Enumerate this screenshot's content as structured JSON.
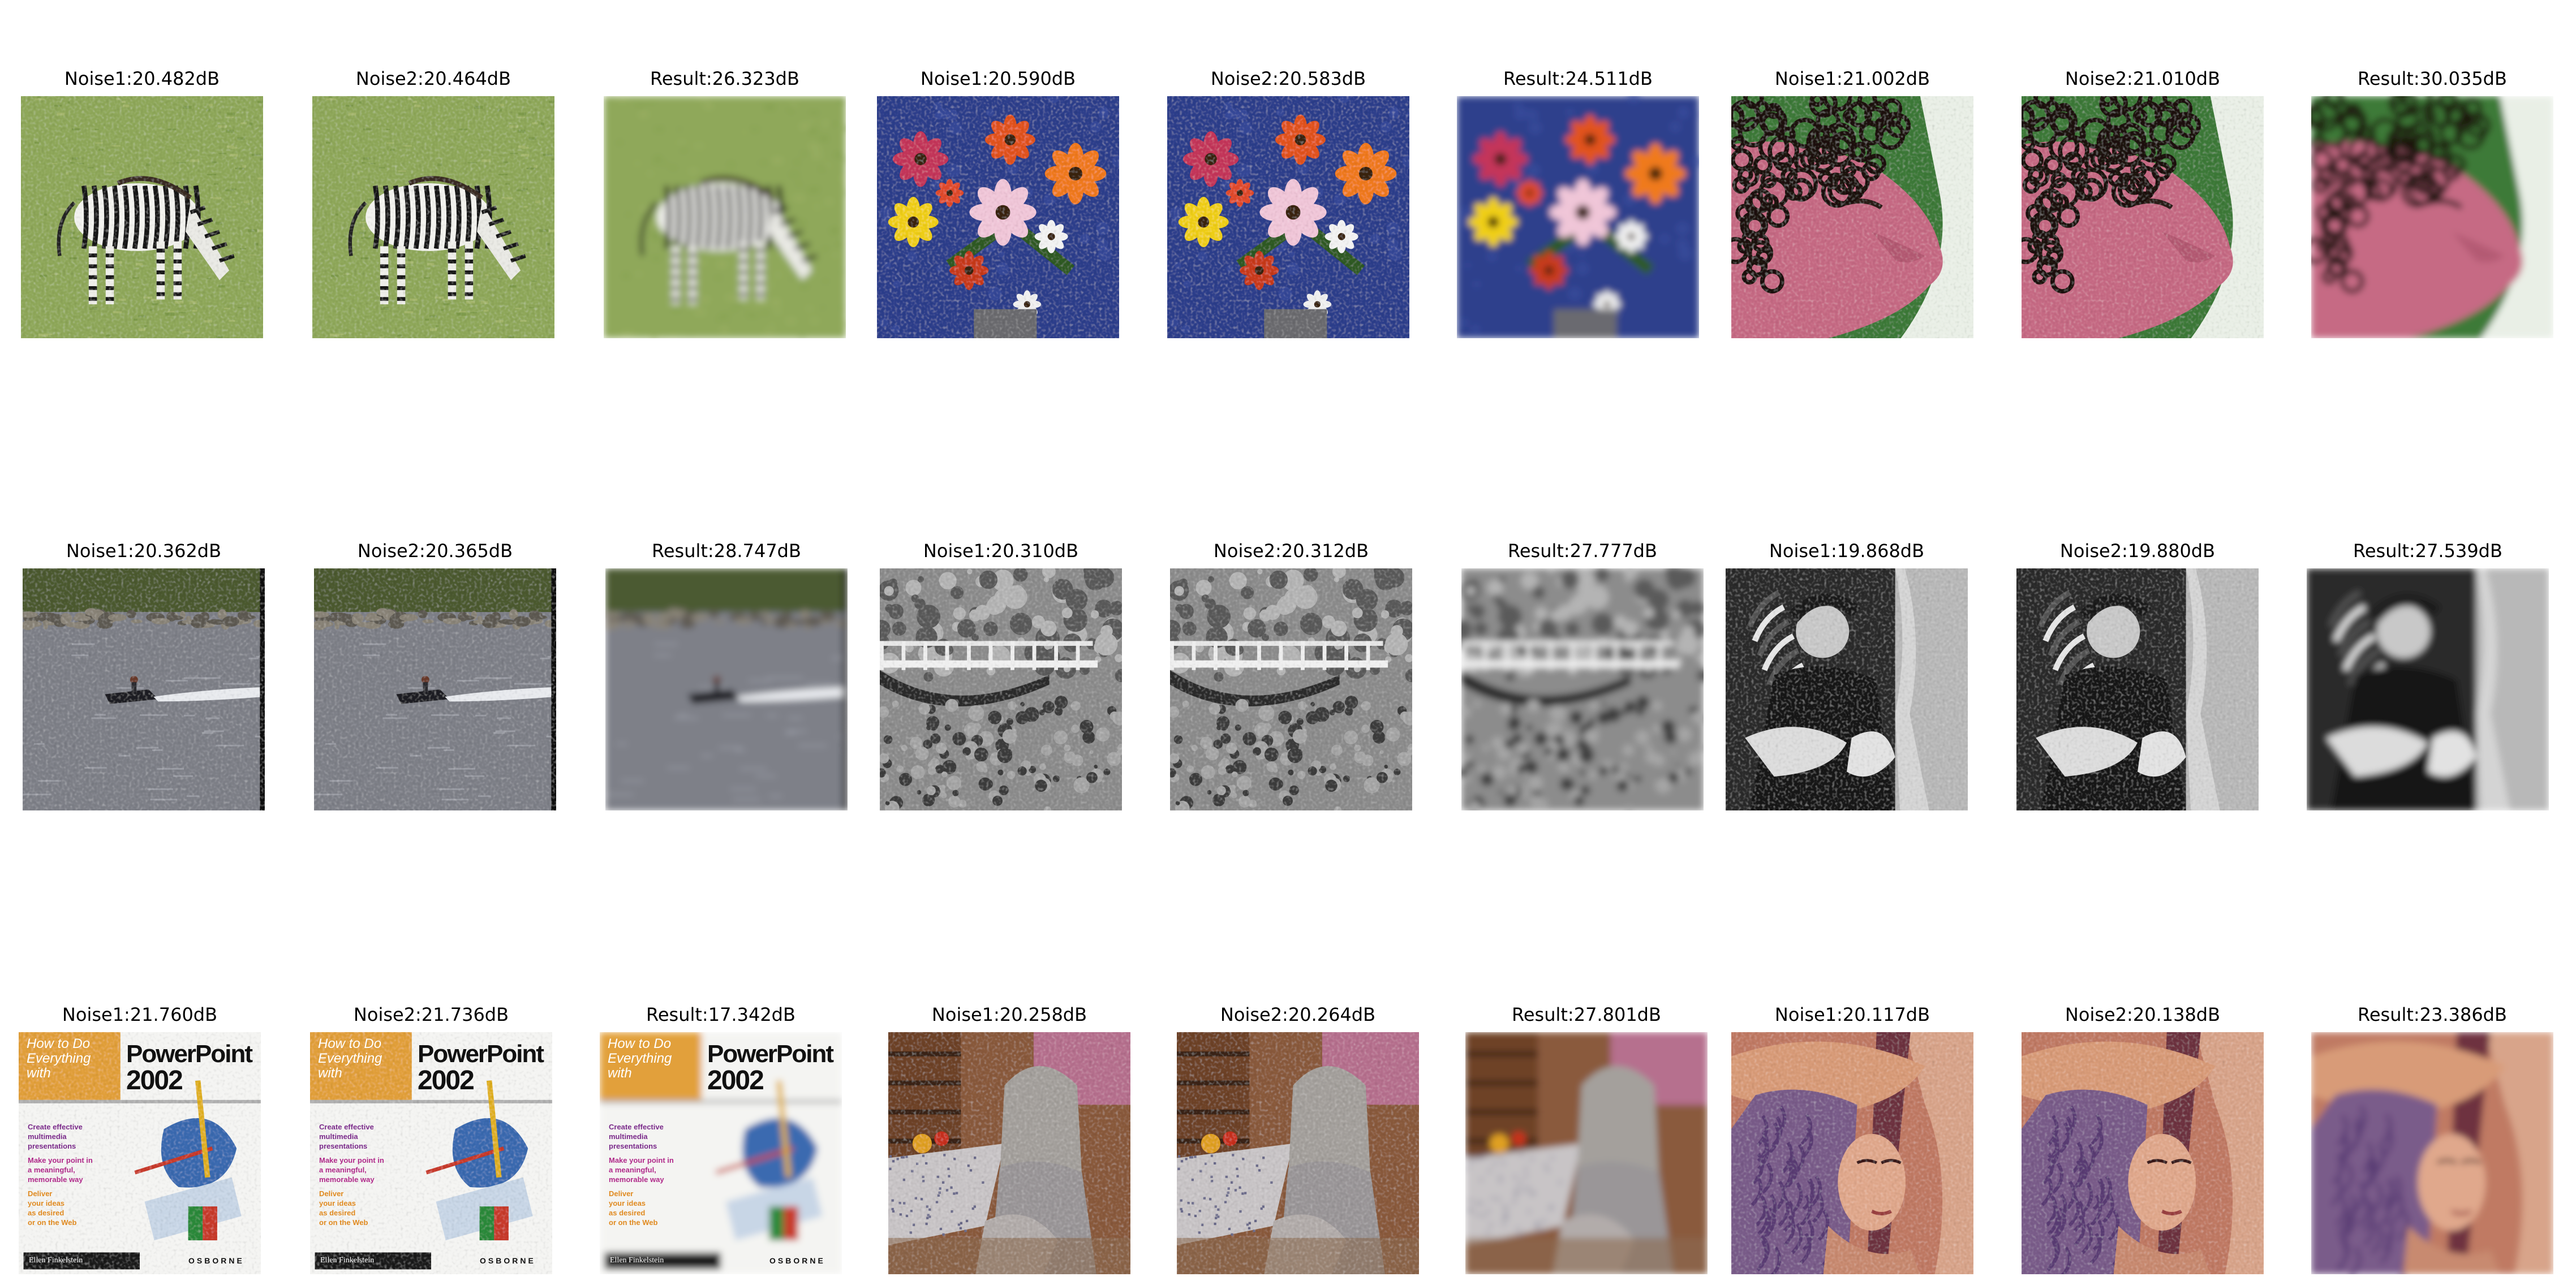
{
  "panels": [
    {
      "caption": "Noise1:20.482dB",
      "scene": "zebra",
      "variant": "noise"
    },
    {
      "caption": "Noise2:20.464dB",
      "scene": "zebra",
      "variant": "noise"
    },
    {
      "caption": "Result:26.323dB",
      "scene": "zebra",
      "variant": "result"
    },
    {
      "caption": "Noise1:20.590dB",
      "scene": "flowers",
      "variant": "noise"
    },
    {
      "caption": "Noise2:20.583dB",
      "scene": "flowers",
      "variant": "noise"
    },
    {
      "caption": "Result:24.511dB",
      "scene": "flowers",
      "variant": "result"
    },
    {
      "caption": "Noise1:21.002dB",
      "scene": "child-face",
      "variant": "noise"
    },
    {
      "caption": "Noise2:21.010dB",
      "scene": "child-face",
      "variant": "noise"
    },
    {
      "caption": "Result:30.035dB",
      "scene": "child-face",
      "variant": "result"
    },
    {
      "caption": "Noise1:20.362dB",
      "scene": "boat",
      "variant": "noise"
    },
    {
      "caption": "Noise2:20.365dB",
      "scene": "boat",
      "variant": "noise"
    },
    {
      "caption": "Result:28.747dB",
      "scene": "boat",
      "variant": "result"
    },
    {
      "caption": "Noise1:20.310dB",
      "scene": "bridge",
      "variant": "noise"
    },
    {
      "caption": "Noise2:20.312dB",
      "scene": "bridge",
      "variant": "noise"
    },
    {
      "caption": "Result:27.777dB",
      "scene": "bridge",
      "variant": "result"
    },
    {
      "caption": "Noise1:19.868dB",
      "scene": "man-with-feathers",
      "variant": "noise"
    },
    {
      "caption": "Noise2:19.880dB",
      "scene": "man-with-feathers",
      "variant": "noise"
    },
    {
      "caption": "Result:27.539dB",
      "scene": "man-with-feathers",
      "variant": "result"
    },
    {
      "caption": "Noise1:21.760dB",
      "scene": "book-cover",
      "variant": "noise",
      "cover": {
        "top": "How to Do\nEverything\nwith",
        "title1": "PowerPoint",
        "title2": "2002",
        "author": "Ellen Finkelstein",
        "publisher": "OSBORNE",
        "blurb": [
          "Create effective",
          "multimedia",
          "presentations",
          "Make your point in",
          "a meaningful,",
          "memorable way",
          "Deliver",
          "your ideas",
          "as desired",
          "or on the Web"
        ]
      }
    },
    {
      "caption": "Noise2:21.736dB",
      "scene": "book-cover",
      "variant": "noise",
      "cover": {
        "top": "How to Do\nEverything\nwith",
        "title1": "PowerPoint",
        "title2": "2002",
        "author": "Ellen Finkelstein",
        "publisher": "OSBORNE",
        "blurb": [
          "Create effective",
          "multimedia",
          "presentations",
          "Make your point in",
          "a meaningful,",
          "memorable way",
          "Deliver",
          "your ideas",
          "as desired",
          "or on the Web"
        ]
      }
    },
    {
      "caption": "Result:17.342dB",
      "scene": "book-cover",
      "variant": "result",
      "cover": {
        "top": "How to Do\nEverything\nwith",
        "title1": "PowerPoint",
        "title2": "2002",
        "author": "Ellen Finkelstein",
        "publisher": "OSBORNE",
        "blurb": [
          "Create effective",
          "multimedia",
          "presentations",
          "Make your point in",
          "a meaningful,",
          "memorable way",
          "Deliver",
          "your ideas",
          "as desired",
          "or on the Web"
        ]
      }
    },
    {
      "caption": "Noise1:20.258dB",
      "scene": "woman-seated",
      "variant": "noise"
    },
    {
      "caption": "Noise2:20.264dB",
      "scene": "woman-seated",
      "variant": "noise"
    },
    {
      "caption": "Result:27.801dB",
      "scene": "woman-seated",
      "variant": "result"
    },
    {
      "caption": "Noise1:20.117dB",
      "scene": "lena",
      "variant": "noise"
    },
    {
      "caption": "Noise2:20.138dB",
      "scene": "lena",
      "variant": "noise"
    },
    {
      "caption": "Result:23.386dB",
      "scene": "lena",
      "variant": "result"
    }
  ]
}
